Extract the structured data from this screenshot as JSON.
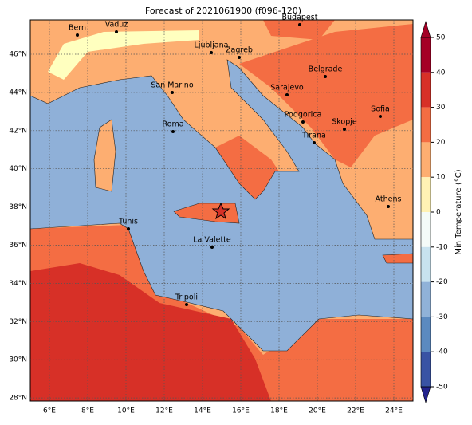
{
  "title": "Forecast of 2021061900 (f096-120)",
  "lon_ticks": [
    "6°E",
    "8°E",
    "10°E",
    "12°E",
    "14°E",
    "16°E",
    "18°E",
    "20°E",
    "22°E",
    "24°E"
  ],
  "lat_ticks": [
    "46°N",
    "44°N",
    "42°N",
    "40°N",
    "38°N",
    "36°N",
    "34°N",
    "32°N",
    "30°N",
    "28°N"
  ],
  "cities": [
    "Bern",
    "Vaduz",
    "Budapest",
    "Ljubljana",
    "Zagreb",
    "Belgrade",
    "San Marino",
    "Sarajevo",
    "Sofia",
    "Podgorica",
    "Skopje",
    "Roma",
    "Tirana",
    "Athens",
    "Tunis",
    "La Valette",
    "Tripoli"
  ],
  "colorbar": {
    "label": "Min Temperature (°C)",
    "ticks": [
      50,
      40,
      30,
      20,
      10,
      0,
      -10,
      -20,
      -30,
      -40,
      -50
    ]
  }
}
